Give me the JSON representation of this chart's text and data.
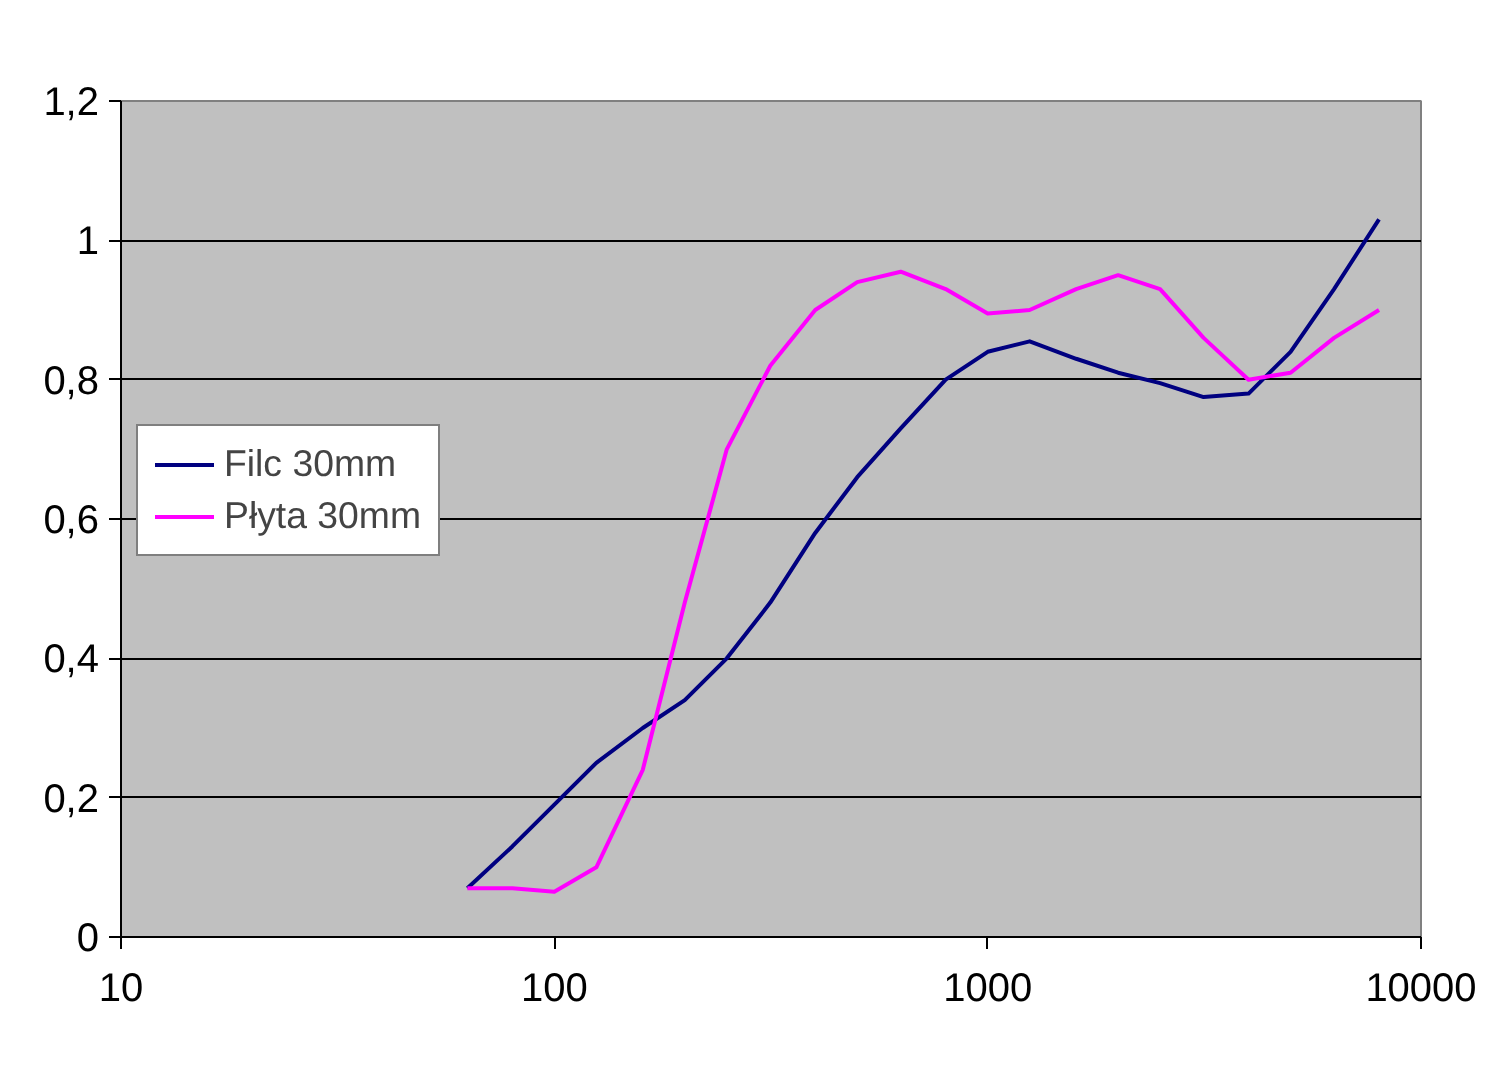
{
  "chart_data": {
    "type": "line",
    "log": "x",
    "xlim": [
      10,
      10000
    ],
    "xticks": [
      10,
      100,
      1000,
      10000
    ],
    "ylim": [
      0,
      1.2
    ],
    "yticks": [
      0,
      {
        "value": 0.2,
        "label": "0,2"
      },
      {
        "value": 0.4,
        "label": "0,4"
      },
      {
        "value": 0.6,
        "label": "0,6"
      },
      {
        "value": 0.8,
        "label": "0,8"
      },
      1,
      {
        "value": 1.2,
        "label": "1,2"
      }
    ],
    "grid": "y",
    "legend": "left",
    "marker": "none",
    "line_style": "solid",
    "x": [
      63,
      80,
      100,
      125,
      160,
      200,
      250,
      315,
      400,
      500,
      630,
      800,
      1000,
      1250,
      1600,
      2000,
      2500,
      3150,
      4000,
      5000,
      6300,
      8000
    ],
    "series": [
      {
        "name": "Filc 30mm",
        "color": "#000080",
        "values": [
          0.07,
          0.13,
          0.19,
          0.25,
          0.3,
          0.34,
          0.4,
          0.48,
          0.58,
          0.66,
          0.73,
          0.8,
          0.84,
          0.855,
          0.83,
          0.81,
          0.795,
          0.775,
          0.78,
          0.84,
          0.93,
          1.03
        ]
      },
      {
        "name": "Płyta 30mm",
        "color": "#ff00ff",
        "values": [
          0.07,
          0.07,
          0.065,
          0.1,
          0.24,
          0.48,
          0.7,
          0.82,
          0.9,
          0.94,
          0.955,
          0.93,
          0.895,
          0.9,
          0.93,
          0.95,
          0.93,
          0.86,
          0.8,
          0.81,
          0.86,
          0.9
        ]
      }
    ]
  }
}
